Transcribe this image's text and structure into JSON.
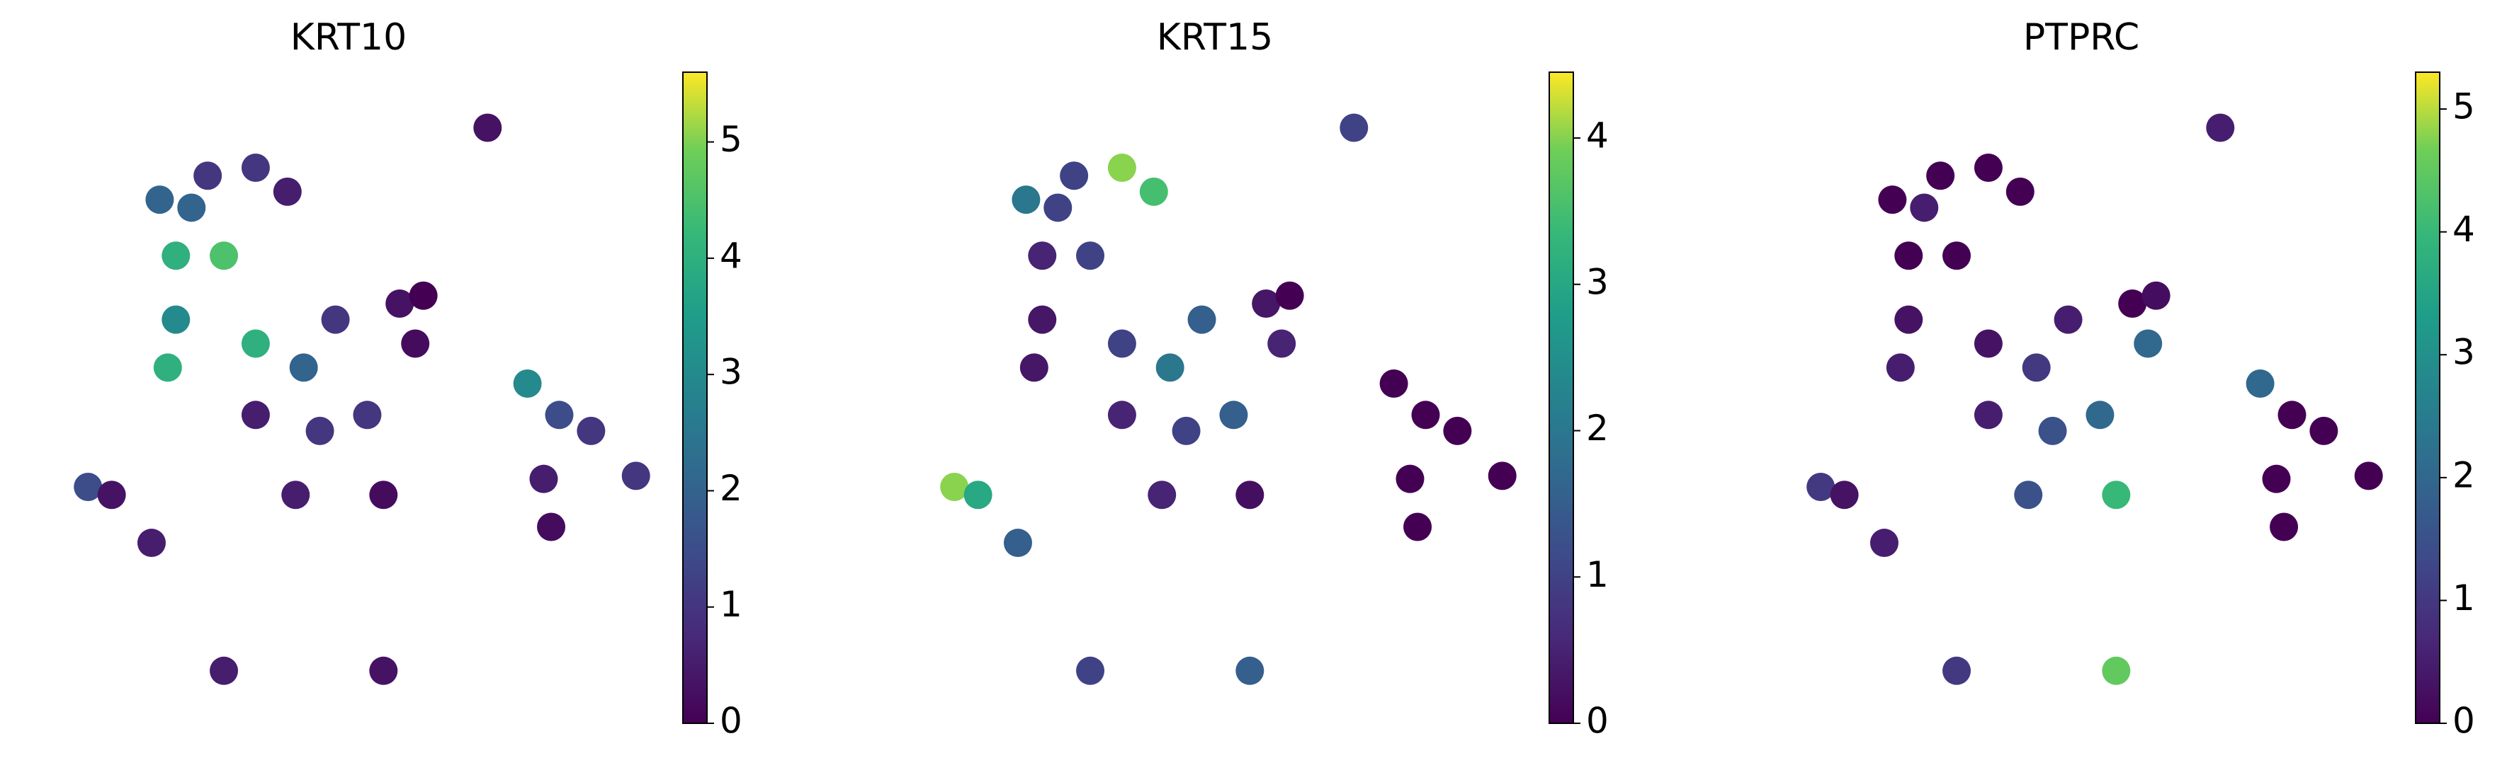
{
  "chart_data": [
    {
      "type": "scatter",
      "title": "KRT10",
      "colormap": "viridis",
      "xlim": [
        0,
        100
      ],
      "ylim": [
        0,
        100
      ],
      "clim": [
        0,
        5.6
      ],
      "cticks": [
        0,
        1,
        2,
        3,
        4,
        5
      ],
      "x": [
        28.2,
        35.9,
        41.0,
        25.6,
        23.1,
        30.8,
        23.1,
        21.8,
        35.9,
        43.6,
        48.7,
        59.0,
        62.8,
        61.5,
        53.8,
        46.2,
        35.9,
        56.4,
        84.6,
        79.5,
        89.7,
        82.1,
        83.3,
        9.0,
        12.8,
        19.2,
        30.8,
        56.4,
        73.1,
        20.5,
        96.9,
        42.3
      ],
      "y": [
        85.7,
        87.0,
        83.1,
        80.5,
        72.7,
        72.7,
        62.3,
        54.5,
        58.4,
        54.5,
        62.3,
        64.9,
        66.2,
        58.4,
        46.8,
        44.2,
        46.8,
        33.8,
        46.8,
        51.9,
        44.2,
        36.4,
        28.6,
        35.1,
        33.8,
        26.0,
        5.2,
        5.2,
        93.5,
        81.8,
        36.9,
        33.8
      ],
      "values": [
        1,
        1,
        0.5,
        2,
        4,
        4.5,
        3,
        4,
        4,
        2,
        1,
        0.3,
        0,
        0.2,
        1,
        1,
        0.5,
        0.2,
        1.5,
        3,
        1,
        0.5,
        0.2,
        1.5,
        0.3,
        0.5,
        0.5,
        0.3,
        0.3,
        2,
        1,
        0.5
      ]
    },
    {
      "type": "scatter",
      "title": "KRT15",
      "colormap": "viridis",
      "xlim": [
        0,
        100
      ],
      "ylim": [
        0,
        100
      ],
      "clim": [
        0,
        4.45
      ],
      "cticks": [
        0,
        1,
        2,
        3,
        4
      ],
      "x": [
        28.2,
        35.9,
        41.0,
        25.6,
        23.1,
        30.8,
        23.1,
        21.8,
        35.9,
        43.6,
        48.7,
        59.0,
        62.8,
        61.5,
        53.8,
        46.2,
        35.9,
        56.4,
        84.6,
        79.5,
        89.7,
        82.1,
        83.3,
        9.0,
        12.8,
        19.2,
        30.8,
        56.4,
        73.1,
        20.5,
        96.9,
        42.3
      ],
      "y": [
        85.7,
        87.0,
        83.1,
        80.5,
        72.7,
        72.7,
        62.3,
        54.5,
        58.4,
        54.5,
        62.3,
        64.9,
        66.2,
        58.4,
        46.8,
        44.2,
        46.8,
        33.8,
        46.8,
        51.9,
        44.2,
        36.4,
        28.6,
        35.1,
        33.8,
        26.0,
        5.2,
        5.2,
        93.5,
        81.8,
        36.9,
        33.8
      ],
      "values": [
        1,
        4,
        3.5,
        1,
        0.5,
        1,
        0.3,
        0.3,
        1,
        2,
        1.5,
        0.3,
        0,
        0.5,
        1.5,
        1,
        0.5,
        0.2,
        0,
        0,
        0,
        0,
        0,
        4,
        3,
        1.5,
        1,
        1.5,
        1,
        2,
        0,
        0.5
      ]
    },
    {
      "type": "scatter",
      "title": "PTPRC",
      "colormap": "viridis",
      "xlim": [
        0,
        100
      ],
      "ylim": [
        0,
        100
      ],
      "clim": [
        0,
        5.3
      ],
      "cticks": [
        0,
        1,
        2,
        3,
        4,
        5
      ],
      "x": [
        28.2,
        35.9,
        41.0,
        25.6,
        23.1,
        30.8,
        23.1,
        21.8,
        35.9,
        43.6,
        48.7,
        59.0,
        62.8,
        61.5,
        53.8,
        46.2,
        35.9,
        56.4,
        84.6,
        79.5,
        89.7,
        82.1,
        83.3,
        9.0,
        12.8,
        19.2,
        30.8,
        56.4,
        73.1,
        20.5,
        96.9,
        42.3
      ],
      "y": [
        85.7,
        87.0,
        83.1,
        80.5,
        72.7,
        72.7,
        62.3,
        54.5,
        58.4,
        54.5,
        62.3,
        64.9,
        66.2,
        58.4,
        46.8,
        44.2,
        46.8,
        33.8,
        46.8,
        51.9,
        44.2,
        36.4,
        28.6,
        35.1,
        33.8,
        26.0,
        5.2,
        5.2,
        93.5,
        81.8,
        36.9,
        33.8
      ],
      "values": [
        0,
        0,
        0,
        0.5,
        0,
        0,
        0.3,
        0.5,
        0.3,
        1,
        0.5,
        0,
        0.2,
        2,
        2,
        1.5,
        0.5,
        4,
        0,
        2,
        0,
        0,
        0,
        1,
        0.3,
        0.5,
        1,
        4.5,
        0.5,
        0,
        0,
        1.5
      ]
    }
  ]
}
